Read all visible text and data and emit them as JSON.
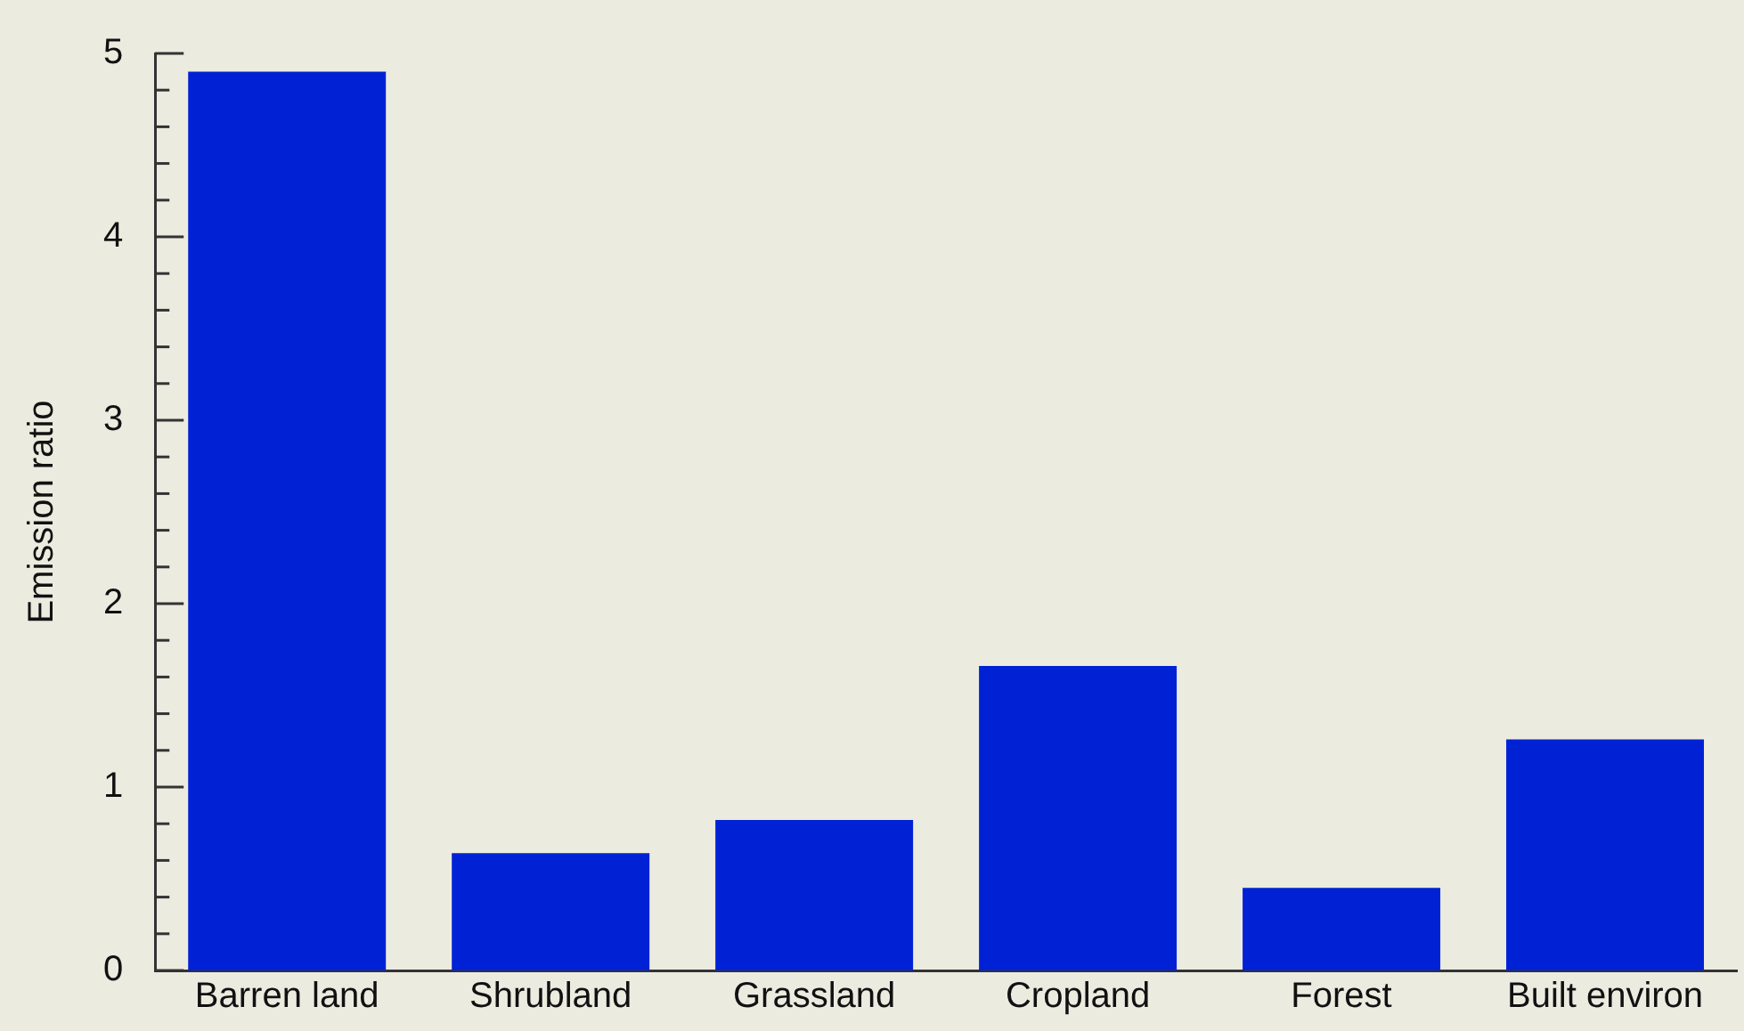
{
  "chart_data": {
    "type": "bar",
    "ylabel": "Emission ratio",
    "categories": [
      "Barren land",
      "Shrubland",
      "Grassland",
      "Cropland",
      "Forest",
      "Built environ"
    ],
    "values": [
      4.9,
      0.64,
      0.82,
      1.66,
      0.45,
      1.26
    ],
    "color": "#0022d4",
    "ylim": [
      0,
      5
    ],
    "yticks": [
      0,
      {
        "value": 0.2,
        "label": null
      },
      {
        "value": 0.4,
        "label": null
      },
      {
        "value": 0.6,
        "label": null
      },
      {
        "value": 0.8,
        "label": null
      },
      1,
      {
        "value": 1.2,
        "label": null
      },
      {
        "value": 1.4,
        "label": null
      },
      {
        "value": 1.6,
        "label": null
      },
      {
        "value": 1.8,
        "label": null
      },
      2,
      {
        "value": 2.2,
        "label": null
      },
      {
        "value": 2.4,
        "label": null
      },
      {
        "value": 2.6,
        "label": null
      },
      {
        "value": 2.8,
        "label": null
      },
      3,
      {
        "value": 3.2,
        "label": null
      },
      {
        "value": 3.4,
        "label": null
      },
      {
        "value": 3.6,
        "label": null
      },
      {
        "value": 3.8,
        "label": null
      },
      4,
      {
        "value": 4.2,
        "label": null
      },
      {
        "value": 4.4,
        "label": null
      },
      {
        "value": 4.6,
        "label": null
      },
      {
        "value": 4.8,
        "label": null
      },
      5
    ],
    "grid": false,
    "legend": false
  }
}
